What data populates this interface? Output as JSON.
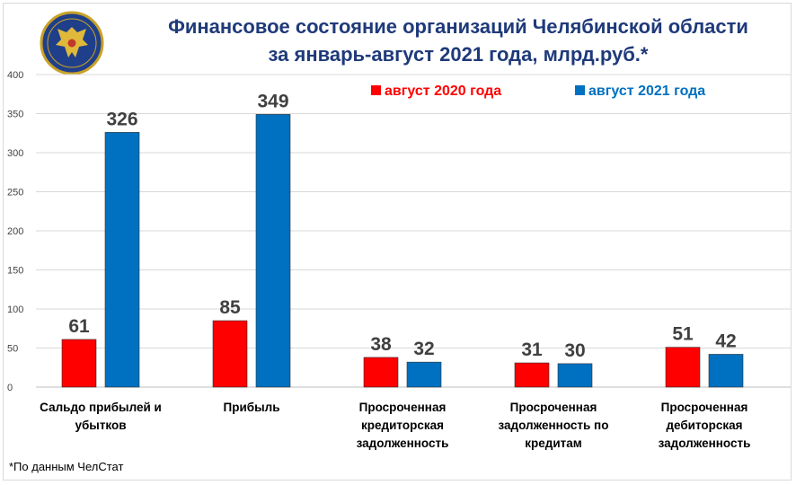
{
  "header": {
    "title_line1": "Финансовое состояние организаций Челябинской области",
    "title_line2": "за январь-август 2021 года, млрд.руб.*",
    "logo": "double-headed-eagle-emblem"
  },
  "footnote": "*По данным ЧелСтат",
  "colors": {
    "series1": "#ff0000",
    "series2": "#0070c0",
    "title": "#1f3a7a"
  },
  "chart_data": {
    "type": "bar",
    "title": "Финансовое состояние организаций Челябинской области за январь-август 2021 года, млрд.руб.*",
    "categories": [
      [
        "Сальдо прибылей и",
        "убытков"
      ],
      [
        "Прибыль"
      ],
      [
        "Просроченная",
        "кредиторская",
        "задолженность"
      ],
      [
        "Просроченная",
        "задолженность по",
        "кредитам"
      ],
      [
        "Просроченная",
        "дебиторская",
        "задолженность"
      ]
    ],
    "series": [
      {
        "name": "август 2020 года",
        "color": "#ff0000",
        "values": [
          61,
          85,
          38,
          31,
          51
        ]
      },
      {
        "name": "август 2021 года",
        "color": "#0070c0",
        "values": [
          326,
          349,
          32,
          30,
          42
        ]
      }
    ],
    "ylim": [
      0,
      400
    ],
    "yticks": [
      0,
      50,
      100,
      150,
      200,
      250,
      300,
      350,
      400
    ],
    "grid": true,
    "legend": "top-right"
  }
}
